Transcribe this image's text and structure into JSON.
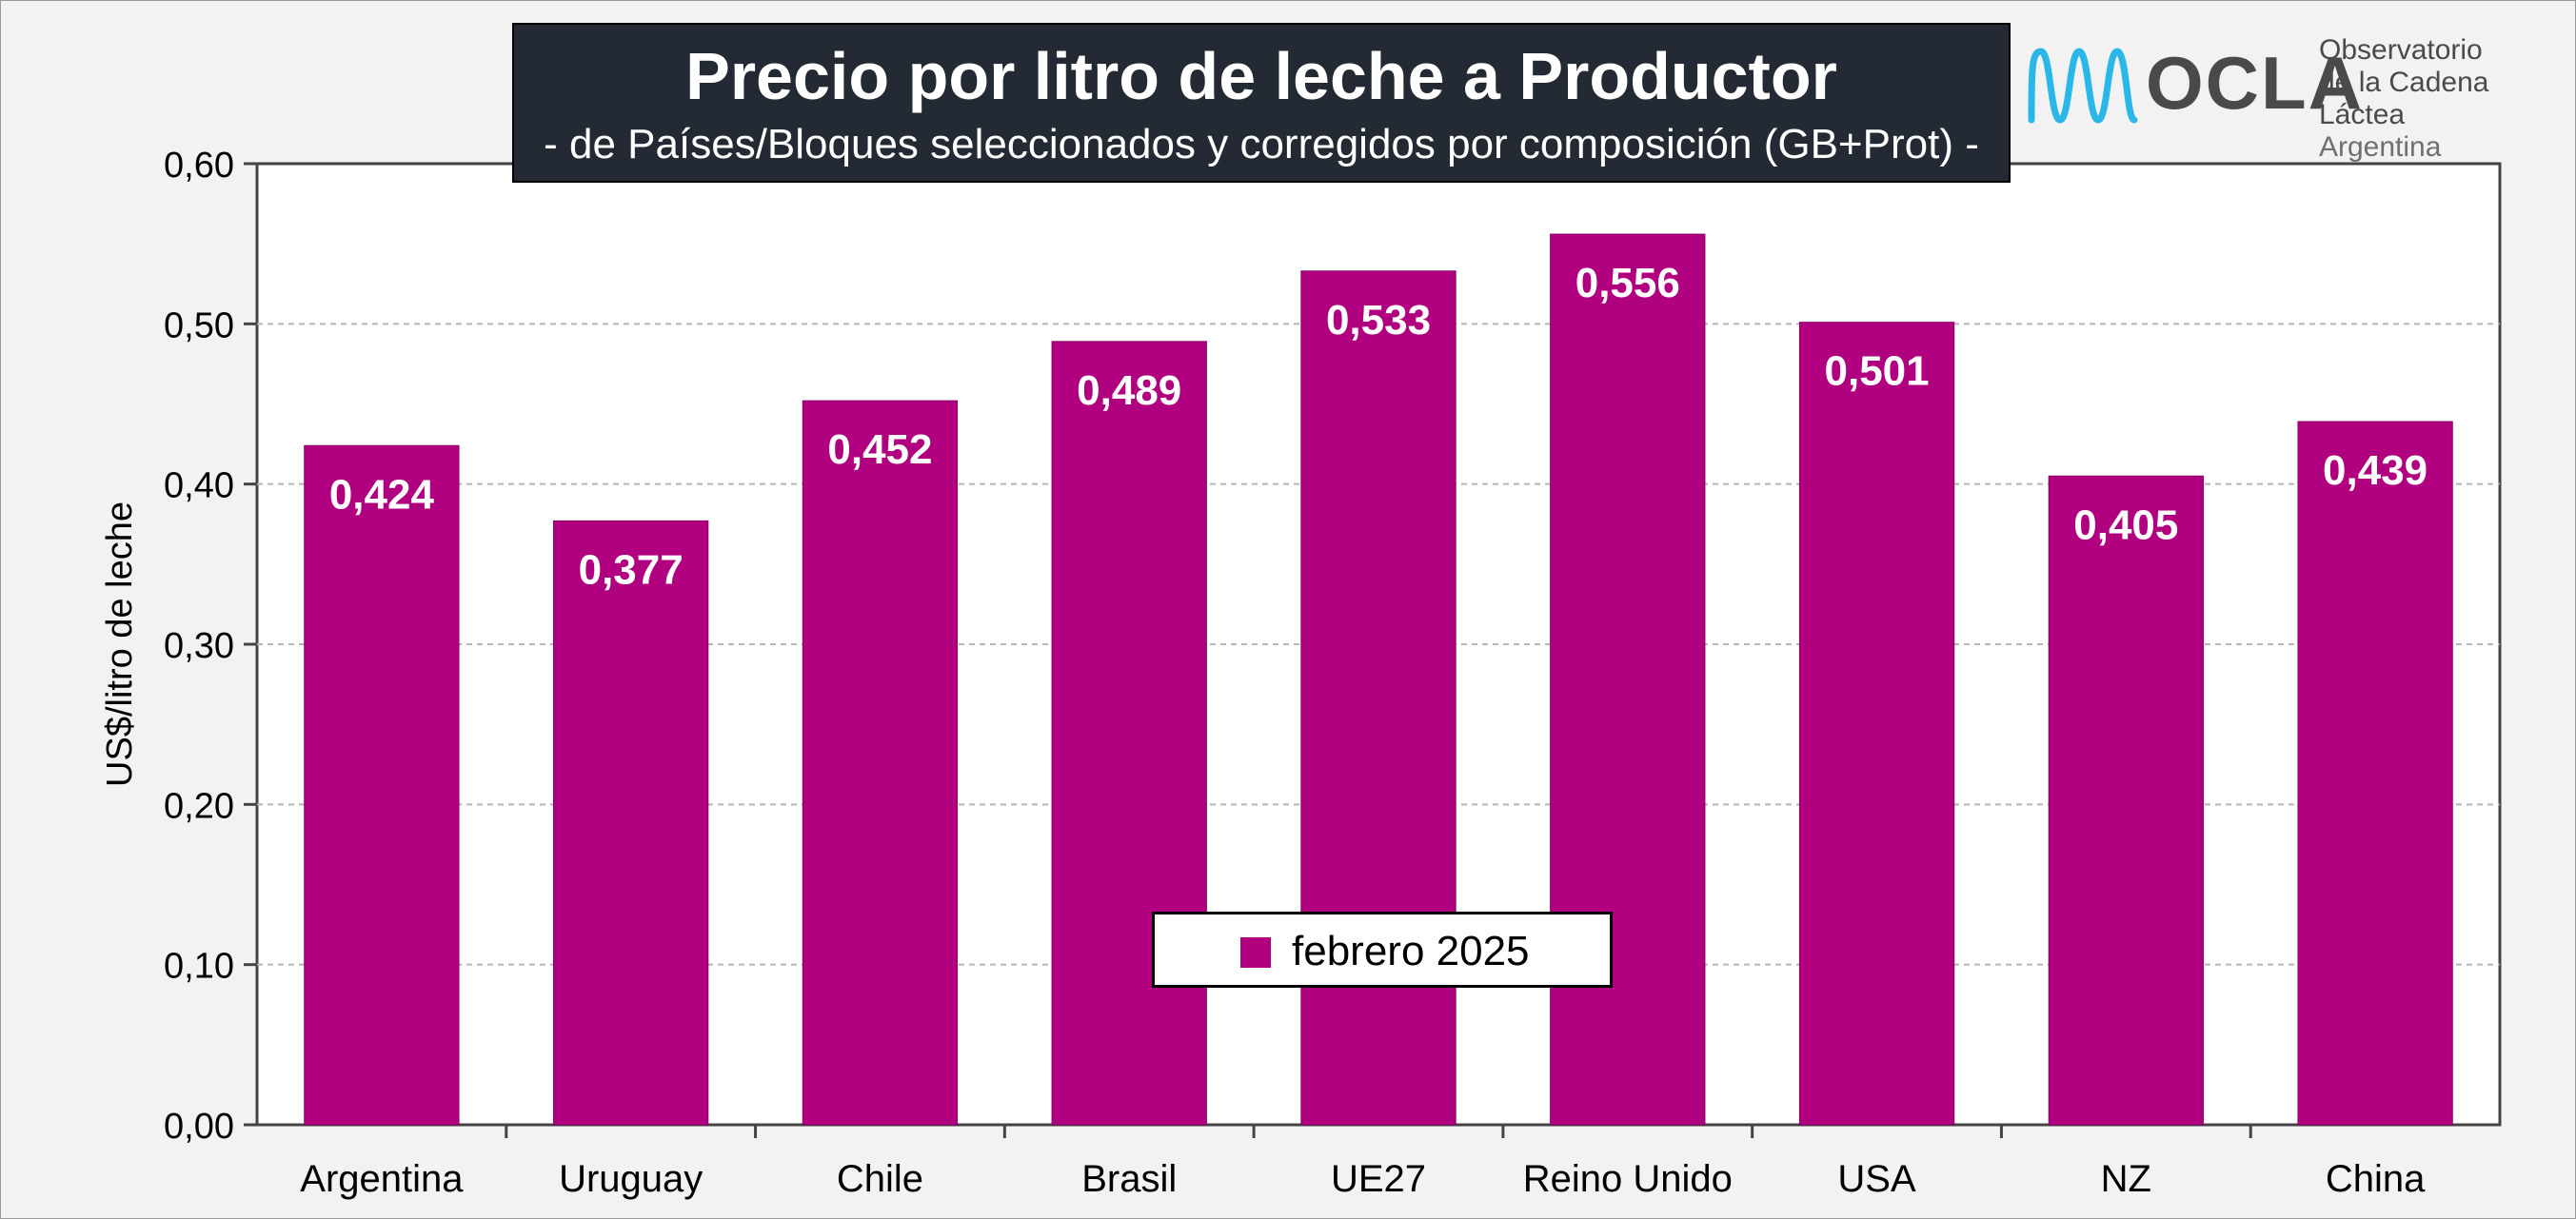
{
  "header": {
    "title": "Precio por litro de leche a Productor",
    "subtitle": "-  de Países/Bloques seleccionados y corregidos por composición (GB+Prot) -"
  },
  "logo": {
    "wordmark": "OCLA",
    "line1": "Observatorio",
    "line2": "de la Cadena Láctea",
    "line3": "Argentina"
  },
  "chart_data": {
    "type": "bar",
    "categories": [
      "Argentina",
      "Uruguay",
      "Chile",
      "Brasil",
      "UE27",
      "Reino Unido",
      "USA",
      "NZ",
      "China"
    ],
    "series": [
      {
        "name": "febrero 2025",
        "values": [
          0.424,
          0.377,
          0.452,
          0.489,
          0.533,
          0.556,
          0.501,
          0.405,
          0.439
        ],
        "labels": [
          "0,424",
          "0,377",
          "0,452",
          "0,489",
          "0,533",
          "0,556",
          "0,501",
          "0,405",
          "0,439"
        ],
        "color": "#b0007f"
      }
    ],
    "ylabel": "US$/litro de leche",
    "xlabel": "",
    "ylim": [
      0,
      0.6
    ],
    "yticks": [
      "0,00",
      "0,10",
      "0,20",
      "0,30",
      "0,40",
      "0,50",
      "0,60"
    ],
    "grid": true,
    "legend_position": "bottom-center"
  },
  "colors": {
    "bar": "#b0007f",
    "title_bg": "#242a33",
    "logo_accent": "#29b6e8"
  }
}
